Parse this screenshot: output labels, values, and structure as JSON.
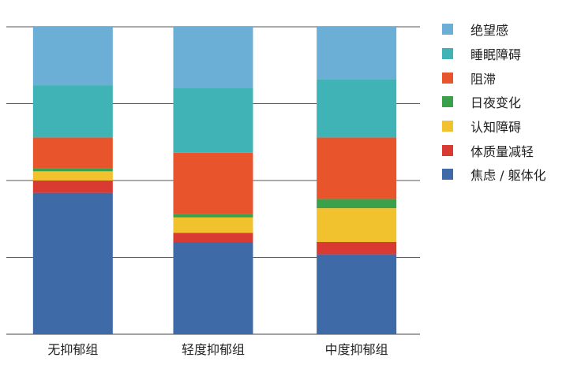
{
  "chart_data": {
    "type": "bar",
    "stacked": true,
    "percent": true,
    "categories": [
      "无抑郁组",
      "轻度抑郁组",
      "中度抑郁组"
    ],
    "ylim": [
      0,
      100
    ],
    "grid": true,
    "legend_position": "right",
    "series": [
      {
        "name": "焦虑 / 躯体化",
        "color": "#3e6aa8",
        "values": [
          46,
          30,
          26
        ]
      },
      {
        "name": "体质量减轻",
        "color": "#d93a32",
        "values": [
          4,
          3,
          4
        ]
      },
      {
        "name": "认知障碍",
        "color": "#f2c12e",
        "values": [
          3,
          5,
          11
        ]
      },
      {
        "name": "日夜变化",
        "color": "#3aa04a",
        "values": [
          1,
          1,
          3
        ]
      },
      {
        "name": "阻滞",
        "color": "#e8542c",
        "values": [
          10,
          20,
          20
        ]
      },
      {
        "name": "睡眠障碍",
        "color": "#3fb3b5",
        "values": [
          17,
          21,
          19
        ]
      },
      {
        "name": "绝望感",
        "color": "#6baed6",
        "values": [
          19,
          20,
          17
        ]
      }
    ]
  }
}
